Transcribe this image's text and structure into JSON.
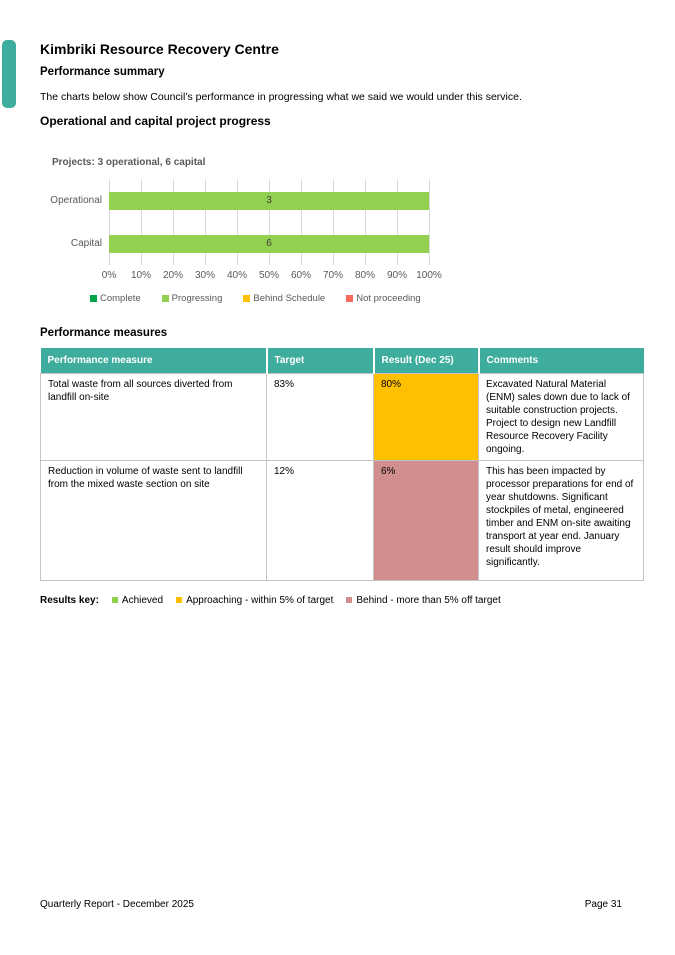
{
  "page": {
    "title": "Kimbriki Resource Recovery Centre",
    "subtitle": "Performance summary",
    "intro": "The charts below show Council’s performance in progressing what we said we would under this service.",
    "section1_heading": "Operational and capital project progress",
    "section2_heading": "Performance measures",
    "footer_left": "Quarterly Report - December 2025",
    "footer_right": "Page 31"
  },
  "colors": {
    "accent_teal": "#3FAD9D",
    "complete_green": "#00A44A",
    "progressing_green": "#92D050",
    "behind_schedule_amber": "#FFC000",
    "not_proceeding_red": "#F96A5A",
    "behind_rose": "#D18E8E",
    "gridline_gray": "#D9D9D9",
    "chart_text_gray": "#595959"
  },
  "chart_data": {
    "type": "bar",
    "orientation": "horizontal",
    "title": "Projects: 3 operational, 6 capital",
    "categories": [
      "Operational",
      "Capital"
    ],
    "series": [
      {
        "name": "Progressing",
        "values": [
          3,
          6
        ],
        "percent_of_row": [
          100,
          100
        ]
      }
    ],
    "bars": [
      {
        "category": "Operational",
        "value": 3,
        "width_pct": 100,
        "color": "#92D050",
        "status": "Progressing"
      },
      {
        "category": "Capital",
        "value": 6,
        "width_pct": 100,
        "color": "#92D050",
        "status": "Progressing"
      }
    ],
    "x_ticks": [
      "0%",
      "10%",
      "20%",
      "30%",
      "40%",
      "50%",
      "60%",
      "70%",
      "80%",
      "90%",
      "100%"
    ],
    "xlim": [
      0,
      100
    ],
    "grid": true,
    "legend_position": "bottom",
    "legend": [
      {
        "label": "Complete",
        "color": "#00A44A"
      },
      {
        "label": "Progressing",
        "color": "#92D050"
      },
      {
        "label": "Behind Schedule",
        "color": "#FFC000"
      },
      {
        "label": "Not proceeding",
        "color": "#F96A5A"
      }
    ]
  },
  "table": {
    "header_bg": "#3FAD9D",
    "headers": [
      "Performance measure",
      "Target",
      "Result (Dec 25)",
      "Comments"
    ],
    "rows": [
      {
        "measure": "Total waste from all sources diverted from landfill on-site",
        "target": "83%",
        "result": "80%",
        "result_color": "#FFC000",
        "comments": "Excavated Natural Material (ENM) sales down due to lack of suitable construction projects. Project to design new Landfill Resource Recovery Facility ongoing."
      },
      {
        "measure": "Reduction in volume of waste sent to landfill from the mixed waste section on site",
        "target": "12%",
        "result": "6%",
        "result_color": "#D18E8E",
        "comments": "This has been impacted by processor preparations for end of year shutdowns. Significant stockpiles of metal, engineered timber and ENM on-site awaiting transport at year end. January result should improve significantly."
      }
    ]
  },
  "results_key": {
    "label": "Results key:",
    "items": [
      {
        "label": "Achieved",
        "color": "#92D050"
      },
      {
        "label": "Approaching - within 5% of target",
        "color": "#FFC000"
      },
      {
        "label": "Behind - more than 5% off target",
        "color": "#D18E8E"
      }
    ]
  }
}
